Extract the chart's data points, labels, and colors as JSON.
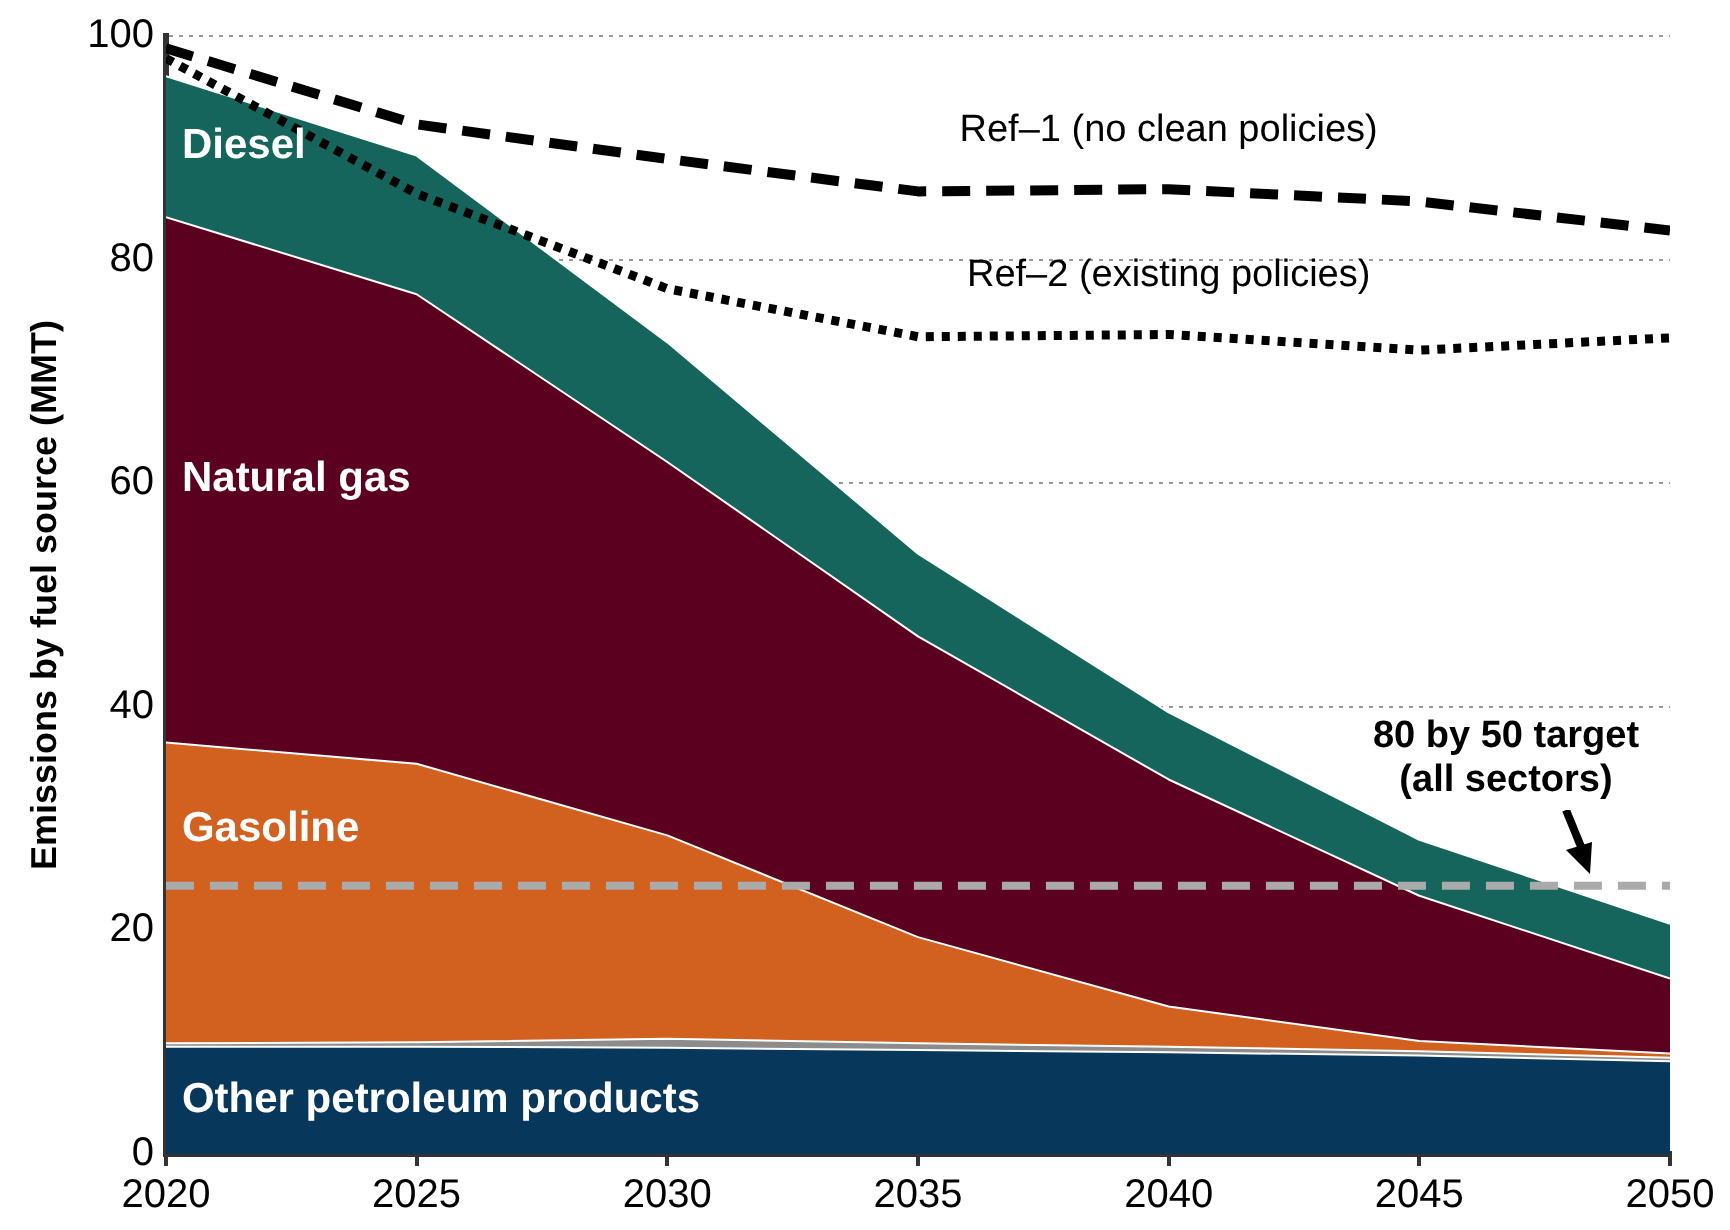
{
  "chart_data": {
    "type": "area",
    "stacked": true,
    "x": [
      2020,
      2025,
      2030,
      2035,
      2040,
      2045,
      2050
    ],
    "series": [
      {
        "name": "Other petroleum products",
        "color": "#08375c",
        "values": [
          9.6,
          9.6,
          9.5,
          9.3,
          9.1,
          8.8,
          8.3
        ]
      },
      {
        "color": "#8c8c8c",
        "values": [
          0.3,
          0.4,
          0.8,
          0.6,
          0.5,
          0.4,
          0.3
        ]
      },
      {
        "name": "Gasoline",
        "color": "#d2601f",
        "values": [
          26.9,
          24.9,
          18.2,
          9.5,
          3.6,
          0.9,
          0.4
        ]
      },
      {
        "name": "Natural gas",
        "color": "#5c0020",
        "values": [
          47.0,
          42.0,
          33.4,
          26.9,
          20.3,
          13.0,
          6.7
        ]
      },
      {
        "name": "Diesel",
        "color": "#15655c",
        "values": [
          12.6,
          12.4,
          10.7,
          7.4,
          6.0,
          5.0,
          4.9
        ]
      },
      {
        "name": "Ref–1 (no clean policies)",
        "type": "line",
        "line_style": "dashed",
        "color": "#000000",
        "values": [
          98.9,
          92.1,
          89.0,
          86.1,
          86.3,
          85.2,
          82.6
        ]
      },
      {
        "name": "Ref–2 (existing policies)",
        "type": "line",
        "line_style": "dotted",
        "color": "#000000",
        "values": [
          98.0,
          85.9,
          77.4,
          73.1,
          73.3,
          71.9,
          73.0
        ]
      }
    ],
    "ylabel": "Emissions by fuel source (MMT)",
    "xlim": [
      2020,
      2050
    ],
    "xticks": [
      2020,
      2025,
      2030,
      2035,
      2040,
      2045,
      2050
    ],
    "ylim": [
      0,
      100
    ],
    "yticks": [
      0,
      20,
      40,
      60,
      80,
      100
    ],
    "grid": "y",
    "legend": false,
    "ref_lines": [
      {
        "axis": "y",
        "value": 24,
        "label": "80 by 50 target\n(all sectors)",
        "color": "#aaaaaa",
        "line_style": "dashed"
      }
    ]
  }
}
